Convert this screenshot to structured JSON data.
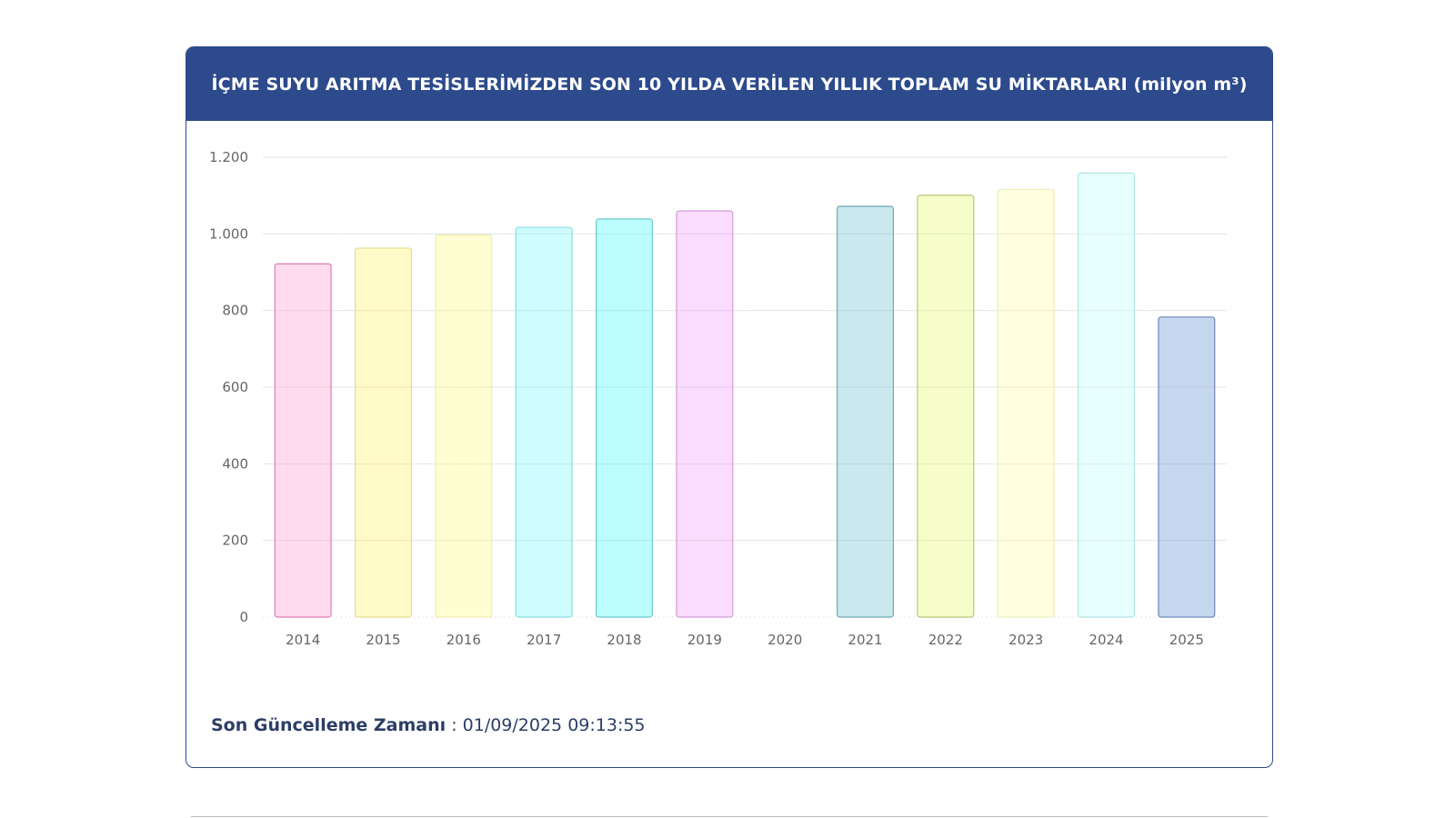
{
  "header": {
    "title": "İÇME SUYU ARITMA TESİSLERİMİZDEN SON 10 YILDA VERİLEN YILLIK TOPLAM SU MİKTARLARI (milyon m³)"
  },
  "footer": {
    "label": "Son Güncelleme Zamanı",
    "separator": " : ",
    "timestamp": "01/09/2025 09:13:55"
  },
  "chart_data": {
    "type": "bar",
    "title": "İÇME SUYU ARITMA TESİSLERİMİZDEN SON 10 YILDA VERİLEN YILLIK TOPLAM SU MİKTARLARI (milyon m³)",
    "xlabel": "",
    "ylabel": "",
    "categories": [
      "2014",
      "2015",
      "2016",
      "2017",
      "2018",
      "2019",
      "2020",
      "2021",
      "2022",
      "2023",
      "2024",
      "2025"
    ],
    "values": [
      922,
      963,
      997,
      1017,
      1039,
      1060,
      0,
      1072,
      1101,
      1116,
      1159,
      783
    ],
    "ylim": [
      0,
      1200
    ],
    "yticks": [
      0,
      200,
      400,
      600,
      800,
      1000,
      1200
    ],
    "ytick_labels": [
      "0",
      "200",
      "400",
      "600",
      "800",
      "1.000",
      "1.200"
    ],
    "grid": true,
    "bar_fills": [
      "#ffdced",
      "#fffac8",
      "#fffed2",
      "#cffcfd",
      "#bbfdfb",
      "#f9dcfe",
      "#ffffff",
      "#c9e9ee",
      "#f6fdc8",
      "#fffee0",
      "#e7fffd",
      "#c5d7ef"
    ],
    "bar_strokes": [
      "#e37ab5",
      "#e6dd90",
      "#f1ebb0",
      "#89dfe3",
      "#6fc9cf",
      "#d49bd9",
      "#ffffff",
      "#6fa7b3",
      "#b9c67a",
      "#ecedbb",
      "#aee4e3",
      "#6f88b8"
    ]
  }
}
